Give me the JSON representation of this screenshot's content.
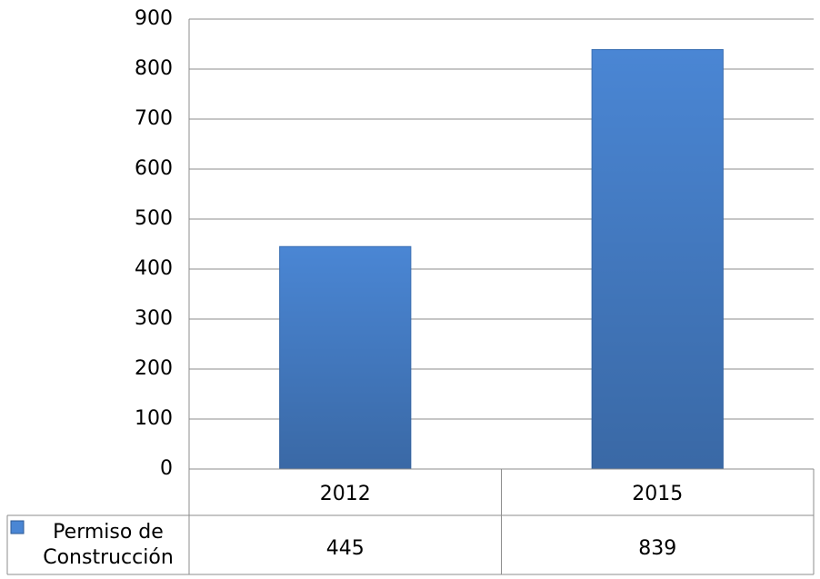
{
  "chart_data": {
    "type": "bar",
    "categories": [
      "2012",
      "2015"
    ],
    "series": [
      {
        "name": "Permiso de Construcción",
        "color": "#4a86d4",
        "values": [
          445,
          839
        ]
      }
    ],
    "ylim": [
      0,
      900
    ],
    "yticks": [
      0,
      100,
      200,
      300,
      400,
      500,
      600,
      700,
      800,
      900
    ],
    "grid": true,
    "data_table": true
  }
}
